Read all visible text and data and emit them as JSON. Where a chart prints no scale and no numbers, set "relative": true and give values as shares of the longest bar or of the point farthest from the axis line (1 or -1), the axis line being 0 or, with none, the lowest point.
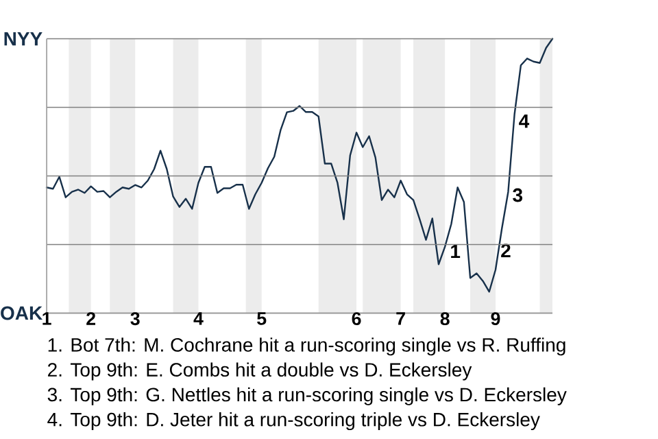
{
  "chart_data": {
    "type": "line",
    "relative": true,
    "categories": [
      "1",
      null,
      null,
      null,
      null,
      null,
      null,
      "2",
      null,
      null,
      null,
      null,
      null,
      null,
      "3",
      null,
      null,
      null,
      null,
      null,
      null,
      null,
      null,
      null,
      "4",
      null,
      null,
      null,
      null,
      null,
      null,
      null,
      null,
      null,
      "5",
      null,
      null,
      null,
      null,
      null,
      null,
      null,
      null,
      null,
      null,
      null,
      null,
      null,
      null,
      "6",
      null,
      null,
      null,
      null,
      null,
      null,
      "7",
      null,
      null,
      null,
      null,
      null,
      null,
      "8",
      null,
      null,
      null,
      null,
      null,
      null,
      null,
      "9",
      null,
      null,
      null,
      null,
      null,
      null,
      null,
      null,
      null
    ],
    "series": [
      {
        "color": "#17304a",
        "values": [
          0.458,
          0.453,
          0.497,
          0.422,
          0.442,
          0.45,
          0.438,
          0.462,
          0.442,
          0.445,
          0.422,
          0.442,
          0.458,
          0.453,
          0.467,
          0.458,
          0.483,
          0.525,
          0.592,
          0.525,
          0.425,
          0.387,
          0.417,
          0.38,
          0.475,
          0.533,
          0.533,
          0.438,
          0.455,
          0.455,
          0.468,
          0.468,
          0.38,
          0.433,
          0.475,
          0.528,
          0.57,
          0.667,
          0.732,
          0.737,
          0.755,
          0.733,
          0.733,
          0.717,
          0.545,
          0.545,
          0.475,
          0.342,
          0.575,
          0.658,
          0.605,
          0.645,
          0.567,
          0.412,
          0.45,
          0.422,
          0.483,
          0.433,
          0.412,
          0.342,
          0.267,
          0.345,
          0.178,
          0.242,
          0.325,
          0.458,
          0.405,
          0.128,
          0.145,
          0.117,
          0.078,
          0.158,
          0.308,
          0.442,
          0.725,
          0.903,
          0.928,
          0.917,
          0.912,
          0.967,
          1
        ]
      }
    ],
    "grid": "y",
    "annotations": [
      {
        "text": "1",
        "x": "8",
        "y": 0.225
      },
      {
        "text": "2",
        "x": "9",
        "y": 0.228
      },
      "NYY",
      "OAK",
      "3",
      "4",
      "1. Bot 7th: M. Cochrane hit a run-scoring single vs R. Ruffing",
      "2. Top 9th: E. Combs hit a double vs D. Eckersley",
      "3. Top 9th: G. Nettles hit a run-scoring single vs D. Eckersley",
      "4. Top 9th: D. Jeter hit a run-scoring triple vs D. Eckersley"
    ]
  }
}
